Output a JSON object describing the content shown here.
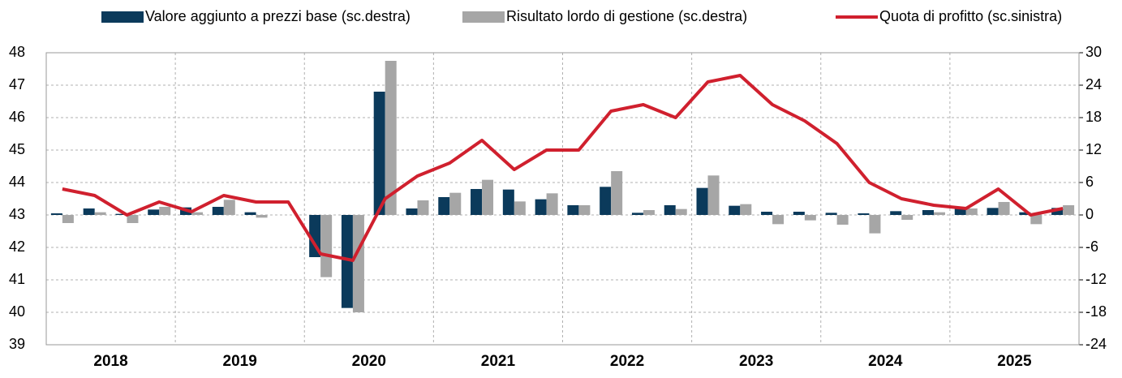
{
  "chart_data": {
    "type": "bar_line",
    "groups": [
      "2018",
      "2019",
      "2020",
      "2021",
      "2022",
      "2023",
      "2024",
      "2025"
    ],
    "series": [
      {
        "name": "Valore aggiunto a prezzi base (sc.destra)",
        "type": "bar",
        "axis": "y2",
        "color": "#0b3a5b",
        "values": [
          0.3,
          1.2,
          0.2,
          1.0,
          1.4,
          1.5,
          0.5,
          0,
          -7.8,
          -17.2,
          22.8,
          1.2,
          3.3,
          4.8,
          4.7,
          2.9,
          1.8,
          5.2,
          0.4,
          1.8,
          5.0,
          1.7,
          0.6,
          0.6,
          0.4,
          0.3,
          0.7,
          0.9,
          1.3,
          1.3,
          0.5,
          1.3
        ]
      },
      {
        "name": "Risultato lordo di gestione (sc.destra)",
        "type": "bar",
        "axis": "y2",
        "color": "#a6a6a6",
        "values": [
          -1.5,
          0.5,
          -1.5,
          1.5,
          0.5,
          2.8,
          -0.5,
          0,
          -11.5,
          -18,
          28.5,
          2.7,
          4.1,
          6.5,
          2.5,
          4.0,
          1.8,
          8.1,
          0.9,
          1.1,
          7.3,
          2.0,
          -1.7,
          -1.0,
          -1.8,
          -3.4,
          -0.9,
          0.5,
          1.2,
          2.4,
          -1.7,
          1.8
        ]
      },
      {
        "name": "Quota di profitto (sc.sinistra)",
        "type": "line",
        "axis": "y",
        "color": "#d0202e",
        "values": [
          43.8,
          43.6,
          43.0,
          43.4,
          43.1,
          43.6,
          43.4,
          43.4,
          41.8,
          41.6,
          43.5,
          44.2,
          44.6,
          45.3,
          44.4,
          45.0,
          45.0,
          46.2,
          46.4,
          46.0,
          47.1,
          47.3,
          46.4,
          45.9,
          45.2,
          44.0,
          43.5,
          43.3,
          43.2,
          43.8,
          43.0,
          43.2
        ]
      }
    ],
    "ylim": [
      39,
      48
    ],
    "yticks": [
      39,
      40,
      41,
      42,
      43,
      44,
      45,
      46,
      47,
      48
    ],
    "y2lim": [
      -24,
      30
    ],
    "y2ticks": [
      -24,
      -18,
      -12,
      -6,
      0,
      6,
      12,
      18,
      24,
      30
    ],
    "grid": true,
    "legend": "top"
  }
}
